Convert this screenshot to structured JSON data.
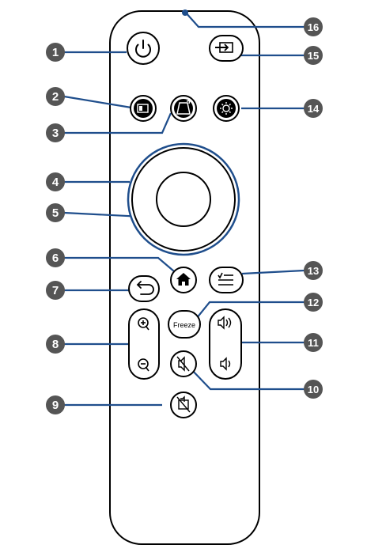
{
  "callouts": [
    {
      "id": "1",
      "target": "power-button",
      "icon": "power-icon"
    },
    {
      "id": "2",
      "target": "source-search-button",
      "icon": "source-search-icon"
    },
    {
      "id": "3",
      "target": "keystone-button",
      "icon": "keystone-icon"
    },
    {
      "id": "4",
      "target": "direction-ring",
      "icon": ""
    },
    {
      "id": "5",
      "target": "enter-button",
      "icon": ""
    },
    {
      "id": "6",
      "target": "home-button",
      "icon": "home-icon"
    },
    {
      "id": "7",
      "target": "back-button",
      "icon": "back-arrow-icon"
    },
    {
      "id": "8",
      "target": "zoom-rocker",
      "icon": "zoom-in-icon"
    },
    {
      "id": "9",
      "target": "av-mute-button",
      "icon": "av-mute-icon"
    },
    {
      "id": "10",
      "target": "audio-mute-button",
      "icon": "mute-icon"
    },
    {
      "id": "11",
      "target": "volume-rocker",
      "icon": "volume-up-icon"
    },
    {
      "id": "12",
      "target": "freeze-button",
      "icon": ""
    },
    {
      "id": "13",
      "target": "menu-button",
      "icon": "menu-icon"
    },
    {
      "id": "14",
      "target": "brightness-button",
      "icon": "brightness-icon"
    },
    {
      "id": "15",
      "target": "source-button",
      "icon": "input-icon"
    },
    {
      "id": "16",
      "target": "ir-emitter",
      "icon": ""
    }
  ],
  "buttons": {
    "freeze_label": "Freeze"
  },
  "colors": {
    "leader_line": "#1f4e8c",
    "callout_fill": "#555555",
    "outline": "#000000"
  }
}
